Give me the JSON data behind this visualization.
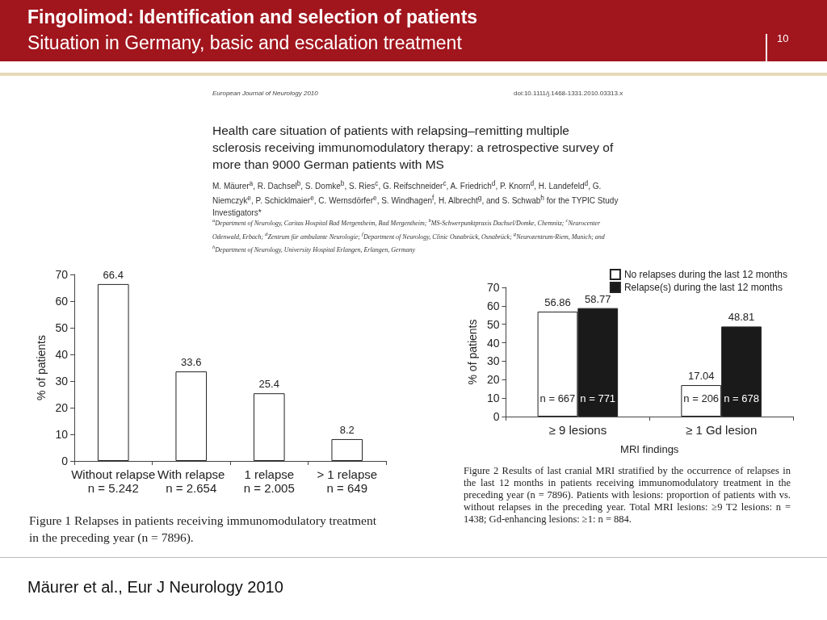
{
  "chart_data": [
    {
      "type": "bar",
      "title": "Fingolimod: Identification and selection of patients",
      "subtitle": "Situation in Germany, basic and escalation treatment",
      "categories": [
        "Without relapse\nn = 5.242",
        "With relapse\nn = 2.654",
        "1 relapse\nn = 2.005",
        "> 1 relapse\nn = 649"
      ],
      "values": [
        66.4,
        33.6,
        25.4,
        8.2
      ],
      "color": "#ffffff",
      "ylabel": "% of patients",
      "ylim": [
        0,
        70
      ],
      "yticks": [
        0,
        10,
        20,
        30,
        40,
        50,
        60,
        70
      ],
      "grid": false,
      "legend": false,
      "data_labels": true,
      "annotations": [
        "10",
        "European Journal of Neurology 2010",
        "doi:10.1111/j.1468-1331.2010.03313.x",
        "Health care situation of patients with relapsing–remitting multiple sclerosis receiving immunomodulatory therapy: a retrospective survey of more than 9000 German patients with MS",
        "M. Mäurer$^{a}$, R. Dachsel$^{b}$, S. Domke$^{b}$, S. Ries$^{c}$, G. Reifschneider$^{c}$, A. Friedrich$^{d}$, P. Knorn$^{d}$, H. Landefeld$^{d}$, G. Niemczyk$^{e}$, P. Schicklmaier$^{e}$, C. Wernsdörfer$^{e}$, S. Windhagen$^{f}$, H. Albrecht$^{g}$, and S. Schwab$^{h}$ for the TYPIC Study Investigators*",
        "$^{a}$Department of Neurology, Caritas Hospital Bad Mergentheim, Bad Mergentheim; $^{b}$MS-Schwerpunktpraxis Dachsel/Domke, Chemnitz; $^{c}$Neurocenter Odenwald, Erbach; $^{d}$Zentrum für ambulante Neurologie; $^{f}$Department of Neurology, Clinic Osnabrück, Osnabrück; $^{g}$Neurozentrum-Riem, Munich; and $^{h}$Department of Neurology, University Hospital Erlangen, Erlangen, Germany",
        "Figure 1  Relapses in patients receiving immunomodulatory treatment in the preceding year (n = 7896).",
        "Mäurer et al., Eur J Neurology 2010"
      ]
    },
    {
      "type": "bar",
      "categories": [
        "≥ 9 lesions",
        "≥ 1 Gd lesion"
      ],
      "series": [
        {
          "name": "No relapses during the last 12 months",
          "color": "#ffffff",
          "values": [
            56.86,
            17.04
          ]
        },
        {
          "name": "Relapse(s) during the last 12 months",
          "color": "#1a1a1a",
          "values": [
            58.77,
            48.81
          ]
        }
      ],
      "xlabel": "MRI findings",
      "ylabel": "% of patients",
      "ylim": [
        0,
        70
      ],
      "yticks": [
        0,
        10,
        20,
        30,
        40,
        50,
        60,
        70
      ],
      "grid": false,
      "legend": "top right",
      "data_labels": true,
      "annotations": [
        {
          "text": "n = 667",
          "x": "≥ 9 lesions",
          "y": 10
        },
        {
          "text": "n = 771",
          "x": "≥ 9 lesions",
          "y": 10
        },
        {
          "text": "n = 206",
          "x": "≥ 1 Gd lesion",
          "y": 10
        },
        {
          "text": "n = 678",
          "x": "≥ 1 Gd lesion",
          "y": 10
        },
        "Figure 2  Results of last cranial MRI stratified by the occurrence of relapses in the last 12 months in patients receiving immunomodulatory treatment in the preceding year (n = 7896). Patients with lesions: proportion of patients with vs. without relapses in the preceding year. Total MRI lesions: ≥9 T2 lesions: n = 1438; Gd-enhancing lesions: ≥1: n = 884."
      ]
    }
  ]
}
